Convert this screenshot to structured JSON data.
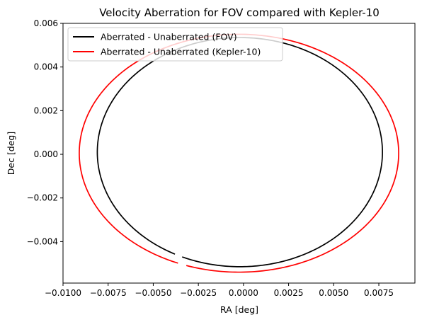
{
  "chart_data": {
    "type": "line",
    "title": "Velocity Aberration for FOV compared with Kepler-10",
    "xlabel": "RA [deg]",
    "ylabel": "Dec [deg]",
    "xlim": [
      -0.01,
      0.0095
    ],
    "ylim": [
      -0.0059,
      0.006
    ],
    "x_ticks": [
      -0.01,
      -0.0075,
      -0.005,
      -0.0025,
      0.0,
      0.0025,
      0.005,
      0.0075
    ],
    "x_tick_labels": [
      "−0.0100",
      "−0.0075",
      "−0.0050",
      "−0.0025",
      "0.0000",
      "0.0025",
      "0.0050",
      "0.0075"
    ],
    "y_ticks": [
      -0.004,
      -0.002,
      0.0,
      0.002,
      0.004,
      0.006
    ],
    "y_tick_labels": [
      "−0.004",
      "−0.002",
      "0.000",
      "0.002",
      "0.004",
      "0.006"
    ],
    "grid": false,
    "legend_position": "top-left",
    "series": [
      {
        "name": "Aberrated - Unaberrated (FOV)",
        "color": "#000000",
        "shape": "ellipse",
        "center": [
          -0.0002,
          0.0001
        ],
        "x_range": [
          -0.0081,
          0.0077
        ],
        "y_range": [
          -0.00515,
          0.00535
        ],
        "gap_at_x": -0.0036
      },
      {
        "name": "Aberrated - Unaberrated (Kepler-10)",
        "color": "#ff0000",
        "shape": "ellipse",
        "center": [
          -0.00025,
          5e-05
        ],
        "x_range": [
          -0.0091,
          0.0086
        ],
        "y_range": [
          -0.0054,
          0.0055
        ],
        "gap_at_x": -0.0034
      }
    ]
  }
}
